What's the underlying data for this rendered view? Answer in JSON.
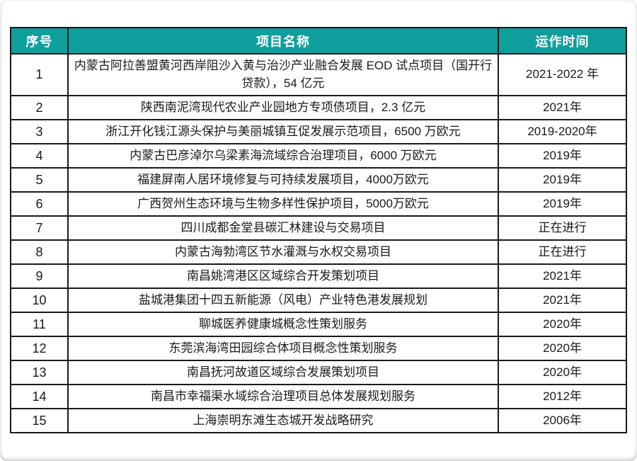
{
  "table": {
    "columns": [
      {
        "label": "序号"
      },
      {
        "label": "项目名称"
      },
      {
        "label": "运作时间"
      }
    ],
    "rows": [
      {
        "no": "1",
        "name": "内蒙古阿拉善盟黄河西岸阻沙入黄与治沙产业融合发展 EOD 试点项目（国开行贷款），54 亿元",
        "time": "2021-2022 年"
      },
      {
        "no": "2",
        "name": "陕西南泥湾现代农业产业园地方专项债项目，2.3 亿元",
        "time": "2021年"
      },
      {
        "no": "3",
        "name": "浙江开化钱江源头保护与美丽城镇互促发展示范项目，6500 万欧元",
        "time": "2019-2020年"
      },
      {
        "no": "4",
        "name": "内蒙古巴彦淖尔乌梁素海流域综合治理项目，6000 万欧元",
        "time": "2019年"
      },
      {
        "no": "5",
        "name": "福建屏南人居环境修复与可持续发展项目，4000万欧元",
        "time": "2019年"
      },
      {
        "no": "6",
        "name": "广西贺州生态环境与生物多样性保护项目，5000万欧元",
        "time": "2019年"
      },
      {
        "no": "7",
        "name": "四川成都金堂县碳汇林建设与交易项目",
        "time": "正在进行"
      },
      {
        "no": "8",
        "name": "内蒙古海勃湾区节水灌溉与水权交易项目",
        "time": "正在进行"
      },
      {
        "no": "9",
        "name": "南昌姚湾港区区域综合开发策划项目",
        "time": "2021年"
      },
      {
        "no": "10",
        "name": "盐城港集团十四五新能源（风电）产业特色港发展规划",
        "time": "2021年"
      },
      {
        "no": "11",
        "name": "聊城医养健康城概念性策划服务",
        "time": "2020年"
      },
      {
        "no": "12",
        "name": "东莞滨海湾田园综合体项目概念性策划服务",
        "time": "2020年"
      },
      {
        "no": "13",
        "name": "南昌抚河故道区域综合发展策划项目",
        "time": "2020年"
      },
      {
        "no": "14",
        "name": "南昌市幸福渠水域综合治理项目总体发展规划服务",
        "time": "2012年"
      },
      {
        "no": "15",
        "name": "上海崇明东滩生态城开发战略研究",
        "time": "2006年"
      }
    ],
    "colors": {
      "header_bg": "#0E9E9C",
      "header_text": "#FFFFFF",
      "border": "#1A1A1A",
      "body_text": "#1A1A1A",
      "page_bg": "#FFFFFF"
    }
  }
}
